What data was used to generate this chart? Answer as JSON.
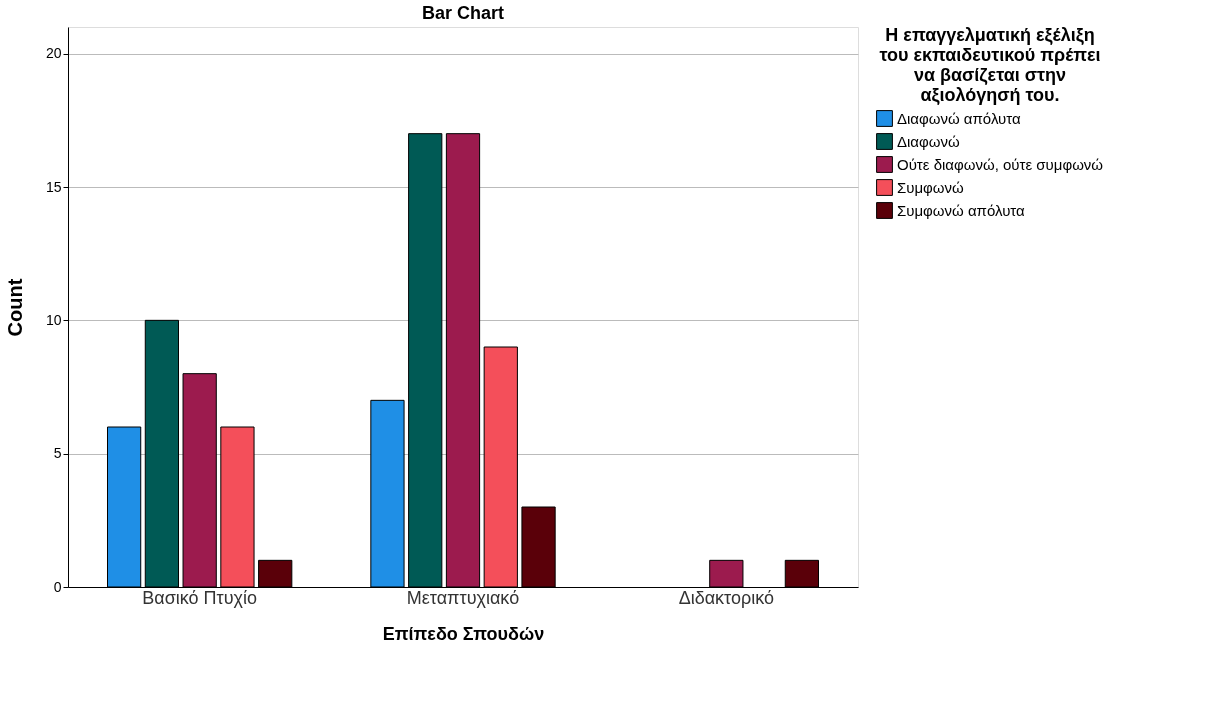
{
  "chart_data": {
    "type": "bar",
    "title": "Bar Chart",
    "xlabel": "Επίπεδο Σπουδών",
    "ylabel": "Count",
    "legend_title": "Η επαγγελματική εξέλιξη του εκπαιδευτικού πρέπει να βασίζεται στην αξιολόγησή του.",
    "categories": [
      "Βασικό Πτυχίο",
      "Μεταπτυχιακό",
      "Διδακτορικό"
    ],
    "series": [
      {
        "name": "Διαφωνώ απόλυτα",
        "color": "#1f8fe6",
        "values": [
          6,
          7,
          null
        ]
      },
      {
        "name": "Διαφωνώ",
        "color": "#005a55",
        "values": [
          10,
          17,
          null
        ]
      },
      {
        "name": "Ούτε διαφωνώ, ούτε συμφωνώ",
        "color": "#9c1b4e",
        "values": [
          8,
          17,
          1
        ]
      },
      {
        "name": "Συμφωνώ",
        "color": "#f44f5a",
        "values": [
          6,
          9,
          null
        ]
      },
      {
        "name": "Συμφωνώ απόλυτα",
        "color": "#5a0009",
        "values": [
          1,
          3,
          1
        ]
      }
    ],
    "ylim": [
      0,
      21
    ],
    "yticks": [
      0,
      5,
      10,
      15,
      20
    ],
    "grid": "y",
    "legend": "top right"
  }
}
